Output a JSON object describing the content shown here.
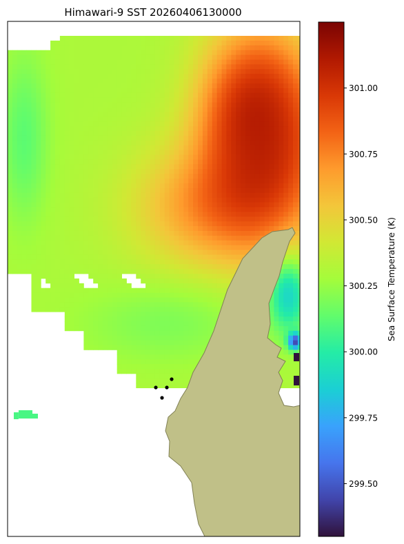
{
  "chart_data": {
    "type": "heatmap",
    "title": "Himawari-9 SST 20260406130000",
    "colorbar": {
      "label": "Sea Surface Temperature (K)",
      "range": [
        299.3,
        301.25
      ],
      "ticks": [
        "299.50",
        "299.75",
        "300.00",
        "300.25",
        "300.50",
        "300.75",
        "301.00"
      ],
      "colormap": "turbo",
      "colormap_stops": [
        "#30123b",
        "#4145ab",
        "#4675ed",
        "#39a2fc",
        "#1bcfd4",
        "#24eca6",
        "#61fc6c",
        "#a4fc3b",
        "#d1e834",
        "#f3c63a",
        "#fe9b2d",
        "#f36315",
        "#d93806",
        "#b11901",
        "#7a0403"
      ]
    },
    "land_color": "#c0c088",
    "land_edge_color": "#808055",
    "field_regions": [
      {
        "region": "northeast-core",
        "value": 301.12
      },
      {
        "region": "east-band",
        "value": 300.92
      },
      {
        "region": "central-warm",
        "value": 300.66
      },
      {
        "region": "northwest",
        "value": 300.3
      },
      {
        "region": "west-margin",
        "value": 300.08
      },
      {
        "region": "south-plume",
        "value": 300.18
      },
      {
        "region": "east-coastal",
        "value": 299.85
      },
      {
        "region": "southeast-inlet",
        "value": 299.35
      }
    ]
  }
}
